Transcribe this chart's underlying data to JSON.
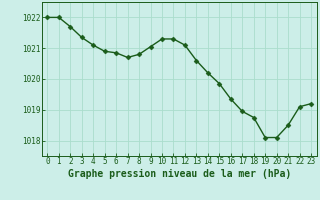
{
  "x": [
    0,
    1,
    2,
    3,
    4,
    5,
    6,
    7,
    8,
    9,
    10,
    11,
    12,
    13,
    14,
    15,
    16,
    17,
    18,
    19,
    20,
    21,
    22,
    23
  ],
  "y": [
    1022.0,
    1022.0,
    1021.7,
    1021.35,
    1021.1,
    1020.9,
    1020.85,
    1020.7,
    1020.8,
    1021.05,
    1021.3,
    1021.3,
    1021.1,
    1020.6,
    1020.2,
    1019.85,
    1019.35,
    1018.95,
    1018.75,
    1018.1,
    1018.1,
    1018.5,
    1019.1,
    1019.2
  ],
  "xlabel": "Graphe pression niveau de la mer (hPa)",
  "ylim": [
    1017.5,
    1022.5
  ],
  "xlim": [
    -0.5,
    23.5
  ],
  "yticks": [
    1018,
    1019,
    1020,
    1021,
    1022
  ],
  "xticks": [
    0,
    1,
    2,
    3,
    4,
    5,
    6,
    7,
    8,
    9,
    10,
    11,
    12,
    13,
    14,
    15,
    16,
    17,
    18,
    19,
    20,
    21,
    22,
    23
  ],
  "line_color": "#1a5c1a",
  "marker_color": "#1a5c1a",
  "bg_color": "#cceee8",
  "grid_color": "#aaddcc",
  "axis_color": "#1a5c1a",
  "tick_fontsize": 5.5,
  "xlabel_fontsize": 7,
  "line_width": 1.0,
  "marker_size": 2.5
}
